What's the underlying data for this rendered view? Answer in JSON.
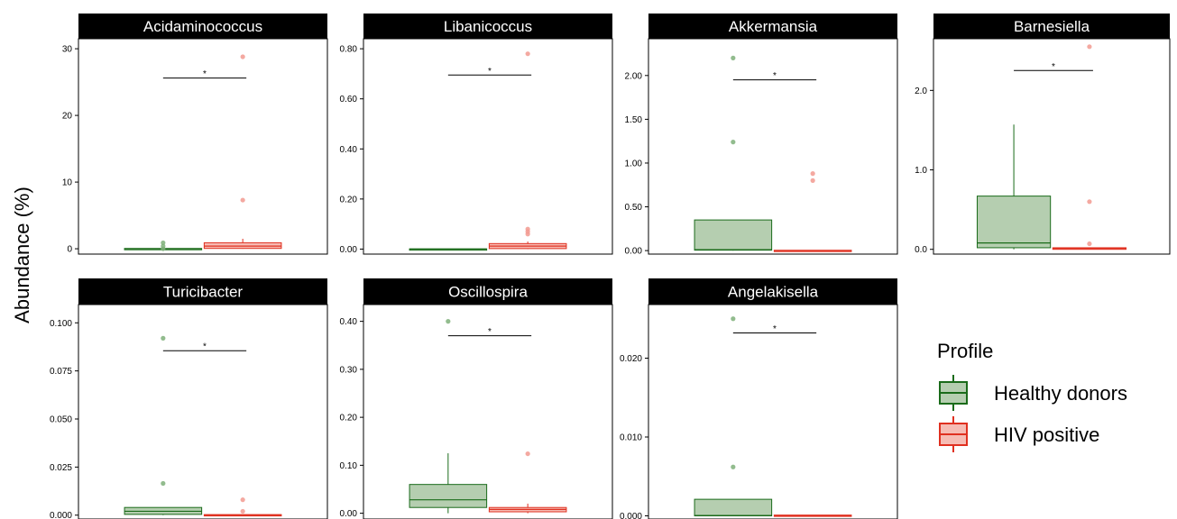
{
  "figure": {
    "ylabel": "Abundance (%)",
    "legend": {
      "title": "Profile",
      "items": [
        {
          "label": "Healthy donors",
          "stroke": "#1a6b1a",
          "fill": "#b5ceb0"
        },
        {
          "label": "HIV positive",
          "stroke": "#e03020",
          "fill": "#f6bcb4"
        }
      ]
    },
    "colors": {
      "healthy_stroke": "#1a6b1a",
      "healthy_fill": "#b5ceb0",
      "healthy_point": "#7fb07a",
      "hiv_stroke": "#e03020",
      "hiv_fill": "#f6bcb4",
      "hiv_point": "#f29a90",
      "header_bg": "#000000",
      "header_text": "#ffffff"
    }
  },
  "chart_data": [
    {
      "type": "box",
      "title": "Acidaminococcus",
      "ylim": [
        -0.8,
        31.5
      ],
      "yticks": [
        0,
        10,
        20,
        30
      ],
      "ytick_labels": [
        "0",
        "10",
        "20",
        "30"
      ],
      "significance": "*",
      "sig_y": 25.6,
      "groups": [
        {
          "name": "Healthy donors",
          "q1": 0,
          "median": 0,
          "q3": 0.05,
          "whisker_low": 0,
          "whisker_high": 0.05,
          "outliers": [
            0,
            0.4,
            0.9
          ]
        },
        {
          "name": "HIV positive",
          "q1": 0.05,
          "median": 0.4,
          "q3": 0.9,
          "whisker_low": 0,
          "whisker_high": 1.5,
          "outliers": [
            7.3,
            28.8
          ]
        }
      ]
    },
    {
      "type": "box",
      "title": "Libanicoccus",
      "ylim": [
        -0.02,
        0.84
      ],
      "yticks": [
        0,
        0.2,
        0.4,
        0.6,
        0.8
      ],
      "ytick_labels": [
        "0.00",
        "0.20",
        "0.40",
        "0.60",
        "0.80"
      ],
      "significance": "*",
      "sig_y": 0.695,
      "groups": [
        {
          "name": "Healthy donors",
          "q1": 0,
          "median": 0,
          "q3": 0.001,
          "whisker_low": 0,
          "whisker_high": 0.001,
          "outliers": []
        },
        {
          "name": "HIV positive",
          "q1": 0.002,
          "median": 0.012,
          "q3": 0.022,
          "whisker_low": 0,
          "whisker_high": 0.03,
          "outliers": [
            0.06,
            0.07,
            0.08,
            0.78
          ]
        }
      ]
    },
    {
      "type": "box",
      "title": "Akkermansia",
      "ylim": [
        -0.04,
        2.42
      ],
      "yticks": [
        0,
        0.5,
        1,
        1.5,
        2
      ],
      "ytick_labels": [
        "0.00",
        "0.50",
        "1.00",
        "1.50",
        "2.00"
      ],
      "significance": "*",
      "sig_y": 1.95,
      "groups": [
        {
          "name": "Healthy donors",
          "q1": 0.005,
          "median": 0.01,
          "q3": 0.35,
          "whisker_low": 0,
          "whisker_high": 0.35,
          "outliers": [
            1.24,
            2.2
          ]
        },
        {
          "name": "HIV positive",
          "q1": 0,
          "median": 0,
          "q3": 0.004,
          "whisker_low": 0,
          "whisker_high": 0.004,
          "outliers": [
            0.8,
            0.88
          ]
        }
      ]
    },
    {
      "type": "box",
      "title": "Barnesiella",
      "ylim": [
        -0.06,
        2.65
      ],
      "yticks": [
        0,
        1,
        2
      ],
      "ytick_labels": [
        "0.0",
        "1.0",
        "2.0"
      ],
      "significance": "*",
      "sig_y": 2.25,
      "groups": [
        {
          "name": "Healthy donors",
          "q1": 0.02,
          "median": 0.08,
          "q3": 0.67,
          "whisker_low": 0,
          "whisker_high": 1.57,
          "outliers": []
        },
        {
          "name": "HIV positive",
          "q1": 0,
          "median": 0.01,
          "q3": 0.02,
          "whisker_low": 0,
          "whisker_high": 0.02,
          "outliers": [
            0.07,
            0.6,
            2.55
          ]
        }
      ]
    },
    {
      "type": "box",
      "title": "Turicibacter",
      "ylim": [
        -0.002,
        0.1095
      ],
      "yticks": [
        0,
        0.025,
        0.05,
        0.075,
        0.1
      ],
      "ytick_labels": [
        "0.000",
        "0.025",
        "0.050",
        "0.075",
        "0.100"
      ],
      "significance": "*",
      "sig_y": 0.0855,
      "groups": [
        {
          "name": "Healthy donors",
          "q1": 0.0004,
          "median": 0.002,
          "q3": 0.004,
          "whisker_low": 0,
          "whisker_high": 0.004,
          "outliers": [
            0.0165,
            0.092
          ]
        },
        {
          "name": "HIV positive",
          "q1": 0,
          "median": 0,
          "q3": 0.0003,
          "whisker_low": 0,
          "whisker_high": 0.0003,
          "outliers": [
            0.002,
            0.008
          ]
        }
      ]
    },
    {
      "type": "box",
      "title": "Oscillospira",
      "ylim": [
        -0.012,
        0.435
      ],
      "yticks": [
        0,
        0.1,
        0.2,
        0.3,
        0.4
      ],
      "ytick_labels": [
        "0.00",
        "0.10",
        "0.20",
        "0.30",
        "0.40"
      ],
      "significance": "*",
      "sig_y": 0.37,
      "groups": [
        {
          "name": "Healthy donors",
          "q1": 0.012,
          "median": 0.028,
          "q3": 0.06,
          "whisker_low": 0,
          "whisker_high": 0.125,
          "outliers": [
            0.4
          ]
        },
        {
          "name": "HIV positive",
          "q1": 0.003,
          "median": 0.008,
          "q3": 0.012,
          "whisker_low": 0,
          "whisker_high": 0.02,
          "outliers": [
            0.124
          ]
        }
      ]
    },
    {
      "type": "box",
      "title": "Angelakisella",
      "ylim": [
        -0.0004,
        0.0268
      ],
      "yticks": [
        0,
        0.01,
        0.02
      ],
      "ytick_labels": [
        "0.000",
        "0.010",
        "0.020"
      ],
      "significance": "*",
      "sig_y": 0.0232,
      "groups": [
        {
          "name": "Healthy donors",
          "q1": 0,
          "median": 5e-05,
          "q3": 0.0021,
          "whisker_low": 0,
          "whisker_high": 0.0021,
          "outliers": [
            0.0062,
            0.025
          ]
        },
        {
          "name": "HIV positive",
          "q1": 0,
          "median": 0,
          "q3": 0.0001,
          "whisker_low": 0,
          "whisker_high": 0.0001,
          "outliers": []
        }
      ]
    }
  ]
}
